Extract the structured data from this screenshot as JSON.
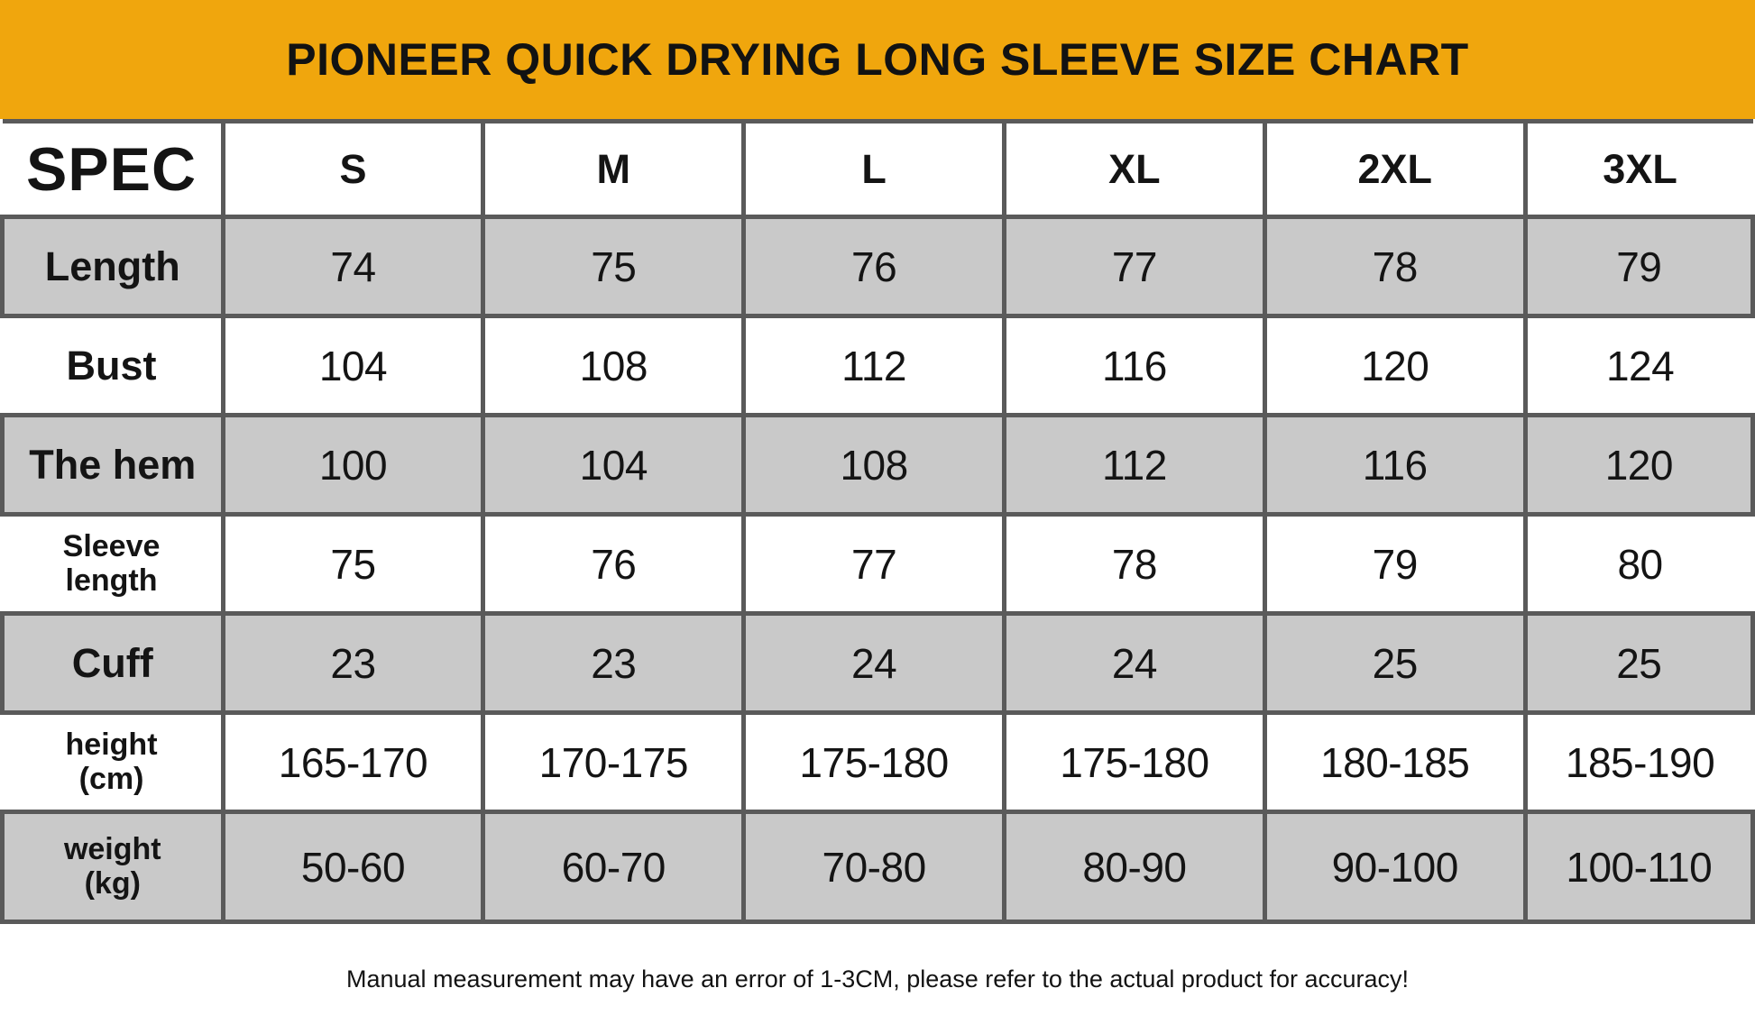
{
  "colors": {
    "banner_background": "#F0A60D",
    "alt_row_background": "#c9c9c9",
    "table_border": "#5a5a5a",
    "text": "#141414"
  },
  "chart_data": {
    "type": "table",
    "title": "PIONEER QUICK DRYING LONG SLEEVE SIZE CHART",
    "corner_label": "SPEC",
    "columns": [
      "S",
      "M",
      "L",
      "XL",
      "2XL",
      "3XL"
    ],
    "rows": [
      {
        "label": "Length",
        "values": [
          "74",
          "75",
          "76",
          "77",
          "78",
          "79"
        ]
      },
      {
        "label": "Bust",
        "values": [
          "104",
          "108",
          "112",
          "116",
          "120",
          "124"
        ]
      },
      {
        "label": "The hem",
        "values": [
          "100",
          "104",
          "108",
          "112",
          "116",
          "120"
        ]
      },
      {
        "label": "Sleeve\nlength",
        "values": [
          "75",
          "76",
          "77",
          "78",
          "79",
          "80"
        ]
      },
      {
        "label": "Cuff",
        "values": [
          "23",
          "23",
          "24",
          "24",
          "25",
          "25"
        ]
      },
      {
        "label": "height\n(cm)",
        "values": [
          "165-170",
          "170-175",
          "175-180",
          "175-180",
          "180-185",
          "185-190"
        ]
      },
      {
        "label": "weight\n(kg)",
        "values": [
          "50-60",
          "60-70",
          "70-80",
          "80-90",
          "90-100",
          "100-110"
        ]
      }
    ],
    "footnote": "Manual measurement may have an error of 1-3CM, please refer to the actual product for accuracy!",
    "layout_hints": {
      "grid": true,
      "alternating_rows": "gray starts at first data row"
    }
  }
}
